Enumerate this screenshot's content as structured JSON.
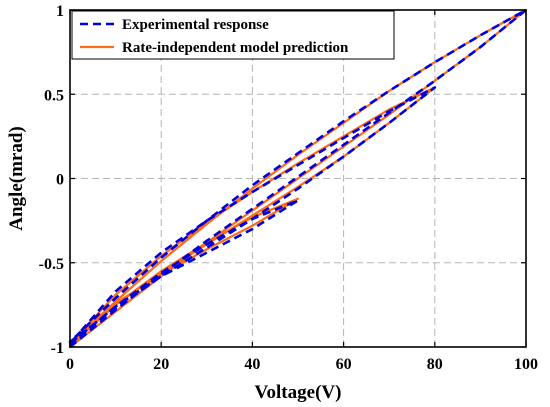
{
  "chart_data": {
    "type": "line",
    "title": "",
    "xlabel": "Voltage(V)",
    "ylabel": "Angle(mrad)",
    "xlim": [
      0,
      100
    ],
    "ylim": [
      -1,
      1
    ],
    "x_ticks": [
      0,
      20,
      40,
      60,
      80,
      100
    ],
    "y_ticks": [
      -1,
      -0.5,
      0,
      0.5,
      1
    ],
    "x_tick_labels": [
      "0",
      "20",
      "40",
      "60",
      "80",
      "100"
    ],
    "y_tick_labels": [
      "-1",
      "-0.5",
      "0",
      "0.5",
      "1"
    ],
    "grid": true,
    "legend_position": "top-left",
    "series": [
      {
        "name": "Experimental response",
        "color": "#0000dd",
        "style": "dashed",
        "x": [
          0,
          10,
          20,
          30,
          40,
          50,
          60,
          70,
          80,
          90,
          100,
          90,
          80,
          70,
          60,
          50,
          40,
          30,
          20,
          10,
          0,
          10,
          20,
          30,
          40,
          50,
          60,
          70,
          80,
          70,
          60,
          50,
          40,
          30,
          20,
          10,
          0,
          10,
          20,
          30,
          40,
          50,
          40,
          30,
          20,
          10,
          0
        ],
        "y": [
          -1,
          -0.78,
          -0.57,
          -0.37,
          -0.18,
          0.01,
          0.2,
          0.39,
          0.58,
          0.78,
          1,
          0.85,
          0.69,
          0.52,
          0.34,
          0.15,
          -0.04,
          -0.25,
          -0.47,
          -0.71,
          -0.97,
          -0.77,
          -0.58,
          -0.41,
          -0.24,
          -0.06,
          0.13,
          0.33,
          0.54,
          0.4,
          0.24,
          0.08,
          -0.08,
          -0.25,
          -0.44,
          -0.67,
          -0.98,
          -0.76,
          -0.58,
          -0.44,
          -0.3,
          -0.13,
          -0.24,
          -0.39,
          -0.56,
          -0.76,
          -0.99
        ]
      },
      {
        "name": "Rate-independent model prediction",
        "color": "#ff6a13",
        "style": "solid",
        "x": [
          0,
          10,
          20,
          30,
          40,
          50,
          60,
          70,
          80,
          90,
          100,
          90,
          80,
          70,
          60,
          50,
          40,
          30,
          20,
          10,
          0,
          10,
          20,
          30,
          40,
          50,
          60,
          70,
          80,
          70,
          60,
          50,
          40,
          30,
          20,
          10,
          0,
          10,
          20,
          30,
          40,
          50,
          40,
          30,
          20,
          10,
          0
        ],
        "y": [
          -1,
          -0.79,
          -0.58,
          -0.38,
          -0.19,
          0,
          0.19,
          0.38,
          0.58,
          0.78,
          1,
          0.85,
          0.69,
          0.52,
          0.33,
          0.14,
          -0.06,
          -0.27,
          -0.49,
          -0.73,
          -0.98,
          -0.75,
          -0.56,
          -0.39,
          -0.22,
          -0.05,
          0.13,
          0.33,
          0.54,
          0.41,
          0.25,
          0.09,
          -0.08,
          -0.26,
          -0.46,
          -0.69,
          -0.98,
          -0.74,
          -0.57,
          -0.42,
          -0.28,
          -0.12,
          -0.23,
          -0.38,
          -0.55,
          -0.75,
          -0.99
        ]
      }
    ]
  }
}
